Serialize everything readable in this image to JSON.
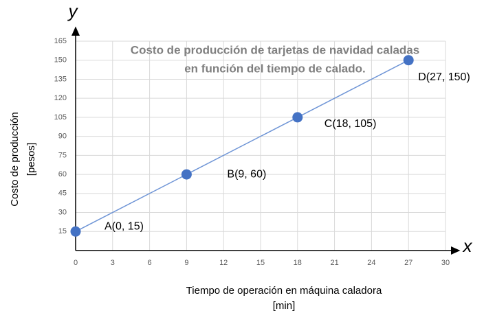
{
  "chart_data": {
    "type": "line",
    "title": [
      "Costo de producción de tarjetas de navidad caladas",
      "en función del tiempo de calado."
    ],
    "xlabel": [
      "Tiempo de operación en máquina caladora",
      "[min]"
    ],
    "ylabel": [
      "Costo de producción",
      "[pesos]"
    ],
    "x_axis_letter": "x",
    "y_axis_letter": "y",
    "x": [
      0,
      9,
      18,
      27
    ],
    "series": [
      {
        "name": "Costo",
        "color": "#4472c4",
        "values": [
          15,
          60,
          105,
          150
        ]
      }
    ],
    "point_labels": [
      "A(0, 15)",
      "B(9, 60)",
      "C(18, 105)",
      "D(27, 150)"
    ],
    "xlim": [
      0,
      30
    ],
    "xticks": [
      0,
      3,
      6,
      9,
      12,
      15,
      18,
      21,
      24,
      27,
      30
    ],
    "ylim": [
      0,
      165
    ],
    "yticks": [
      15,
      30,
      45,
      60,
      75,
      90,
      105,
      120,
      135,
      150,
      165
    ],
    "grid": true
  }
}
